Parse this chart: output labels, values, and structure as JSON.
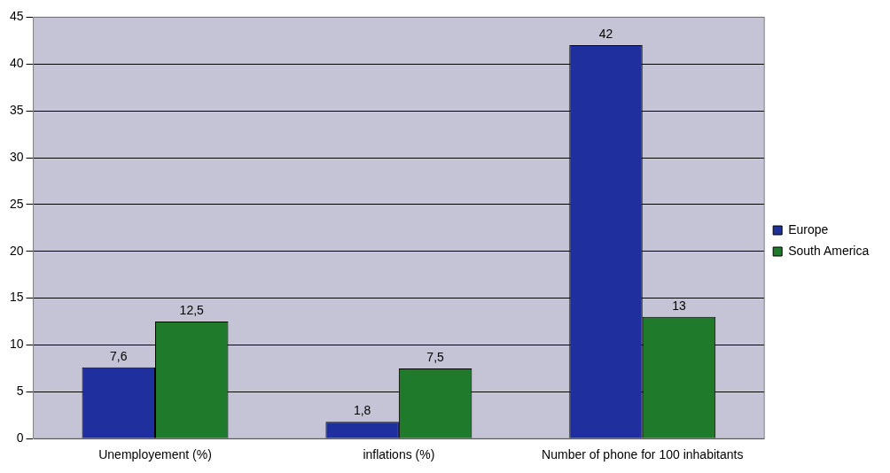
{
  "chart_data": {
    "type": "bar",
    "categories": [
      "Unemployement (%)",
      "inflations (%)",
      "Number of phone for 100 inhabitants"
    ],
    "series": [
      {
        "name": "Europe",
        "color": "#1f2f9e",
        "values": [
          7.6,
          1.8,
          42
        ],
        "value_labels": [
          "7,6",
          "1,8",
          "42"
        ]
      },
      {
        "name": "South America",
        "color": "#1f7a2c",
        "values": [
          12.5,
          7.5,
          13
        ],
        "value_labels": [
          "12,5",
          "7,5",
          "13"
        ]
      }
    ],
    "ylim": [
      0,
      45
    ],
    "yticks": [
      0,
      5,
      10,
      15,
      20,
      25,
      30,
      35,
      40,
      45
    ],
    "grid": "y",
    "legend": "right"
  }
}
